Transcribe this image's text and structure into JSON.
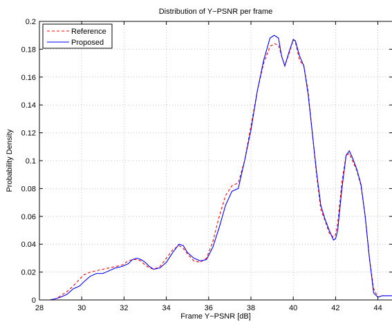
{
  "chart_data": {
    "type": "line",
    "title": "Distribution of Y−PSNR per frame",
    "xlabel": "Frame Y−PSNR [dB]",
    "ylabel": "Probability Density",
    "xlim": [
      28,
      44.7
    ],
    "ylim": [
      0,
      0.2
    ],
    "xticks": [
      28,
      30,
      32,
      34,
      36,
      38,
      40,
      42,
      44
    ],
    "xtick_labels": [
      "28",
      "30",
      "32",
      "34",
      "36",
      "38",
      "40",
      "42",
      "44"
    ],
    "yticks": [
      0,
      0.02,
      0.04,
      0.06,
      0.08,
      0.1,
      0.12,
      0.14,
      0.16,
      0.18,
      0.2
    ],
    "ytick_labels": [
      "0",
      "0.02",
      "0.04",
      "0.06",
      "0.08",
      "0.1",
      "0.12",
      "0.14",
      "0.16",
      "0.18",
      "0.2"
    ],
    "grid": true,
    "legend_position": "top-left",
    "series": [
      {
        "name": "Reference",
        "color": "#ff0000",
        "style": "dashed",
        "x": [
          28.0,
          28.5,
          28.8,
          29.0,
          29.3,
          29.6,
          29.9,
          30.1,
          30.4,
          30.7,
          31.0,
          31.3,
          31.6,
          31.9,
          32.2,
          32.4,
          32.6,
          32.8,
          33.0,
          33.2,
          33.4,
          33.7,
          34.0,
          34.3,
          34.6,
          34.8,
          35.0,
          35.3,
          35.6,
          35.9,
          36.2,
          36.5,
          36.8,
          37.1,
          37.4,
          37.7,
          38.0,
          38.3,
          38.6,
          38.9,
          39.1,
          39.3,
          39.45,
          39.6,
          39.8,
          40.0,
          40.1,
          40.3,
          40.5,
          40.7,
          40.9,
          41.1,
          41.3,
          41.5,
          41.7,
          41.9,
          42.0,
          42.1,
          42.3,
          42.5,
          42.65,
          42.8,
          43.0,
          43.2,
          43.4,
          43.6,
          43.8,
          44.0,
          44.2,
          44.4,
          44.7
        ],
        "y": [
          0.0,
          0.0,
          0.001,
          0.003,
          0.006,
          0.01,
          0.015,
          0.018,
          0.02,
          0.021,
          0.022,
          0.023,
          0.024,
          0.025,
          0.028,
          0.029,
          0.029,
          0.028,
          0.025,
          0.023,
          0.022,
          0.024,
          0.03,
          0.036,
          0.039,
          0.037,
          0.033,
          0.028,
          0.027,
          0.03,
          0.042,
          0.06,
          0.075,
          0.082,
          0.084,
          0.1,
          0.125,
          0.15,
          0.17,
          0.182,
          0.184,
          0.183,
          0.175,
          0.168,
          0.177,
          0.187,
          0.185,
          0.172,
          0.168,
          0.15,
          0.12,
          0.09,
          0.065,
          0.057,
          0.048,
          0.045,
          0.047,
          0.055,
          0.085,
          0.104,
          0.105,
          0.1,
          0.093,
          0.082,
          0.06,
          0.03,
          0.008,
          0.002,
          0.003,
          0.003,
          0.003
        ]
      },
      {
        "name": "Proposed",
        "color": "#0000ff",
        "style": "solid",
        "x": [
          28.0,
          28.5,
          28.8,
          29.0,
          29.3,
          29.6,
          29.9,
          30.1,
          30.4,
          30.7,
          31.0,
          31.3,
          31.6,
          31.9,
          32.2,
          32.4,
          32.6,
          32.8,
          33.0,
          33.2,
          33.4,
          33.7,
          34.0,
          34.3,
          34.6,
          34.8,
          35.0,
          35.3,
          35.6,
          35.9,
          36.2,
          36.5,
          36.8,
          37.1,
          37.4,
          37.7,
          38.0,
          38.3,
          38.6,
          38.9,
          39.1,
          39.3,
          39.45,
          39.6,
          39.8,
          40.0,
          40.1,
          40.3,
          40.5,
          40.7,
          40.9,
          41.1,
          41.3,
          41.5,
          41.7,
          41.9,
          42.0,
          42.1,
          42.3,
          42.5,
          42.65,
          42.8,
          43.0,
          43.2,
          43.4,
          43.6,
          43.8,
          44.0,
          44.2,
          44.4,
          44.7
        ],
        "y": [
          0.0,
          0.0,
          0.001,
          0.002,
          0.004,
          0.008,
          0.01,
          0.013,
          0.017,
          0.019,
          0.019,
          0.021,
          0.023,
          0.024,
          0.026,
          0.029,
          0.03,
          0.029,
          0.027,
          0.024,
          0.022,
          0.023,
          0.027,
          0.034,
          0.04,
          0.039,
          0.034,
          0.03,
          0.028,
          0.029,
          0.038,
          0.052,
          0.068,
          0.078,
          0.08,
          0.1,
          0.122,
          0.15,
          0.172,
          0.188,
          0.19,
          0.188,
          0.175,
          0.168,
          0.178,
          0.187,
          0.186,
          0.175,
          0.168,
          0.148,
          0.12,
          0.092,
          0.068,
          0.058,
          0.05,
          0.043,
          0.044,
          0.05,
          0.08,
          0.104,
          0.107,
          0.102,
          0.094,
          0.083,
          0.06,
          0.03,
          0.005,
          0.002,
          0.003,
          0.003,
          0.003
        ]
      }
    ]
  }
}
